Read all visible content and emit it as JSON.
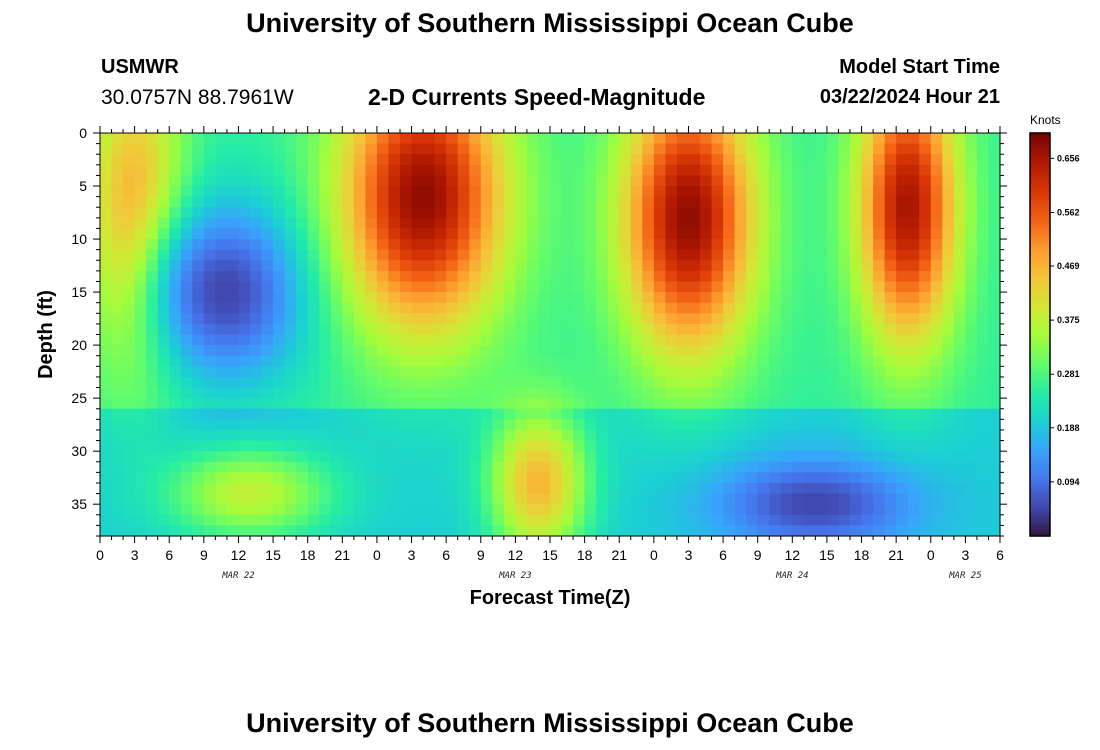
{
  "page": {
    "title": "University of Southern Mississippi Ocean Cube",
    "footer_title": "University of Southern Mississippi Ocean Cube",
    "station": "USMWR",
    "coordinates": "30.0757N  88.7961W",
    "subtitle": "2-D Currents Speed-Magnitude",
    "model_start_label": "Model Start Time",
    "model_start_value": "03/22/2024 Hour 21"
  },
  "chart_data": {
    "type": "heatmap",
    "title": "University of Southern Mississippi Ocean Cube",
    "subtitle": "2-D Currents Speed-Magnitude",
    "xlabel": "Forecast Time(Z)",
    "ylabel": "Depth (ft)",
    "x_unit": "hours UTC",
    "x_range": [
      "03/22/2024 00Z",
      "03/25/2024 06Z"
    ],
    "x_tick_labels": [
      "0",
      "3",
      "6",
      "9",
      "12",
      "15",
      "18",
      "21",
      "0",
      "3",
      "6",
      "9",
      "12",
      "15",
      "18",
      "21",
      "0",
      "3",
      "6",
      "9",
      "12",
      "15",
      "18",
      "21",
      "0",
      "3",
      "6"
    ],
    "date_labels": [
      {
        "text": "MAR 22",
        "hour": 12
      },
      {
        "text": "MAR 23",
        "hour": 36
      },
      {
        "text": "MAR 24",
        "hour": 60
      },
      {
        "text": "MAR 25",
        "hour": 75
      }
    ],
    "y_tick_values": [
      0,
      5,
      10,
      15,
      20,
      25,
      30,
      35
    ],
    "ylim": [
      0,
      38
    ],
    "y_inverted": true,
    "colorbar": {
      "unit": "Knots",
      "range": [
        0,
        0.7
      ],
      "tick_values": [
        0.656,
        0.562,
        0.469,
        0.375,
        0.281,
        0.188,
        0.094
      ],
      "tick_labels": [
        "0.656",
        "0.562",
        "0.469",
        "0.375",
        "0.281",
        "0.188",
        "0.094"
      ],
      "colormap": [
        "#30123b",
        "#4145ab",
        "#4675ed",
        "#39a2fc",
        "#1bcfd4",
        "#24eca6",
        "#61fc6c",
        "#a4fc3b",
        "#d1e834",
        "#f3c63a",
        "#fe9b2d",
        "#f36315",
        "#d93806",
        "#b11901",
        "#7a0402"
      ]
    },
    "features_knots": [
      {
        "hour_center": 3,
        "depth_center": 8,
        "hour_spread": 3,
        "depth_spread": 10,
        "value": 0.5
      },
      {
        "hour_center": 11,
        "depth_center": 15,
        "hour_spread": 5,
        "depth_spread": 6,
        "value": 0.05
      },
      {
        "hour_center": 13,
        "depth_center": 34,
        "hour_spread": 5,
        "depth_spread": 3,
        "value": 0.38
      },
      {
        "hour_center": 28,
        "depth_center": 6,
        "hour_spread": 5,
        "depth_spread": 9,
        "value": 0.68
      },
      {
        "hour_center": 38,
        "depth_center": 33,
        "hour_spread": 3,
        "depth_spread": 5,
        "value": 0.47
      },
      {
        "hour_center": 51,
        "depth_center": 8,
        "hour_spread": 4,
        "depth_spread": 9,
        "value": 0.68
      },
      {
        "hour_center": 62,
        "depth_center": 35,
        "hour_spread": 6,
        "depth_spread": 3,
        "value": 0.05
      },
      {
        "hour_center": 70,
        "depth_center": 7,
        "hour_spread": 3,
        "depth_spread": 9,
        "value": 0.66
      }
    ]
  }
}
